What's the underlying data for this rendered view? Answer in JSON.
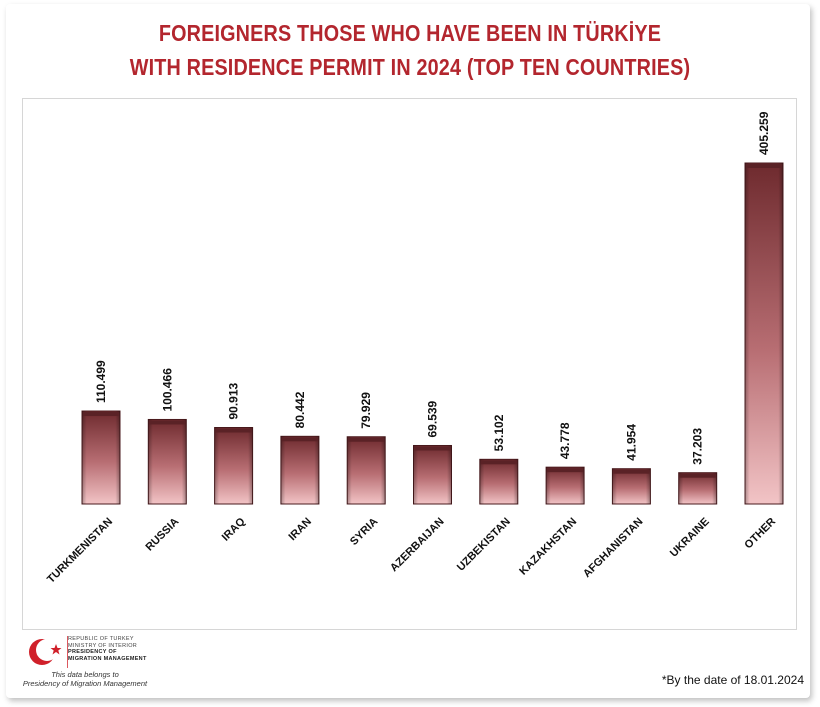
{
  "header": {
    "title_line1": "FOREIGNERS THOSE WHO HAVE BEEN IN TÜRKİYE",
    "title_line2": "WITH RESIDENCE PERMIT IN 2024 (TOP TEN COUNTRIES)"
  },
  "chart_data": {
    "type": "bar",
    "title": "FOREIGNERS THOSE WHO HAVE BEEN IN TÜRKİYE WITH RESIDENCE PERMIT IN 2024 (TOP TEN COUNTRIES)",
    "categories": [
      "TURKMENISTAN",
      "RUSSIA",
      "IRAQ",
      "IRAN",
      "SYRIA",
      "AZERBAIJAN",
      "UZBEKISTAN",
      "KAZAKHSTAN",
      "AFGHANISTAN",
      "UKRAINE",
      "OTHER"
    ],
    "values": [
      110499,
      100466,
      90913,
      80442,
      79929,
      69539,
      53102,
      43778,
      41954,
      37203,
      405259
    ],
    "value_labels": [
      "110.499",
      "100.466",
      "90.913",
      "80.442",
      "79.929",
      "69.539",
      "53.102",
      "43.778",
      "41.954",
      "37.203",
      "405.259"
    ],
    "xlabel": "",
    "ylabel": "",
    "ylim": [
      0,
      405259
    ],
    "grid": false,
    "legend": "none",
    "colors": {
      "bar_dark": "#6e2a2e",
      "bar_light": "#f2c4c6",
      "title": "#b3262e"
    }
  },
  "logo": {
    "line1": "REPUBLIC OF TURKEY",
    "line2": "MINISTRY OF INTERIOR",
    "line3": "PRESIDENCY OF",
    "line4": "MIGRATION MANAGEMENT",
    "note_line1": "This data belongs to",
    "note_line2": "Presidency of Migration Management"
  },
  "footnote": "*By the date of 18.01.2024"
}
